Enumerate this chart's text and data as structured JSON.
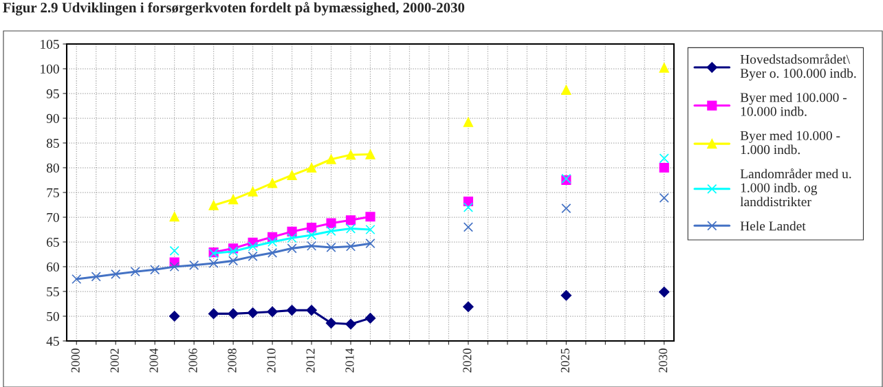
{
  "chart_data": {
    "type": "line",
    "title": "Figur 2.9 Udviklingen i forsørgerkvoten fordelt på bymæssighed, 2000-2030",
    "x": [
      2000,
      2001,
      2002,
      2003,
      2004,
      2005,
      2006,
      2007,
      2008,
      2009,
      2010,
      2011,
      2012,
      2013,
      2014,
      2015,
      2016,
      2020,
      2021,
      2025,
      2026,
      2030
    ],
    "series": [
      {
        "name": "Hovedstadsområdet\\\nByer o. 100.000 indb.",
        "color": "#000080",
        "marker": "diamond",
        "values": [
          null,
          null,
          null,
          null,
          null,
          50,
          null,
          50.5,
          50.5,
          50.7,
          50.9,
          51.2,
          51.2,
          48.6,
          48.4,
          49.6,
          null,
          51.9,
          null,
          54.2,
          null,
          54.9
        ]
      },
      {
        "name": "Byer med 100.000 -\n10.000 indb.",
        "color": "#ff00ff",
        "marker": "square",
        "values": [
          null,
          null,
          null,
          null,
          null,
          60.9,
          null,
          62.9,
          63.7,
          64.9,
          66.0,
          67.1,
          67.9,
          68.8,
          69.4,
          70.1,
          null,
          73.2,
          null,
          77.5,
          null,
          80.0
        ]
      },
      {
        "name": "Byer med 10.000 -\n1.000 indb.",
        "color": "#ffff00",
        "marker": "triangle",
        "values": [
          null,
          null,
          null,
          null,
          null,
          70.1,
          null,
          72.4,
          73.6,
          75.2,
          76.9,
          78.5,
          80.0,
          81.7,
          82.6,
          82.7,
          null,
          89.2,
          null,
          95.7,
          null,
          100.2
        ]
      },
      {
        "name": "Landområder med u.\n1.000 indb. og\nlanddistrikter",
        "color": "#00ffff",
        "marker": "cross",
        "values": [
          null,
          null,
          null,
          null,
          null,
          63.2,
          null,
          62.7,
          63.1,
          64.1,
          65.0,
          65.8,
          66.4,
          67.2,
          67.7,
          67.5,
          null,
          72.0,
          null,
          77.8,
          null,
          81.9
        ]
      },
      {
        "name": "Hele Landet",
        "color": "#4472c4",
        "marker": "cross",
        "values": [
          57.5,
          58.0,
          58.5,
          59.0,
          59.4,
          60.0,
          60.3,
          60.7,
          61.2,
          62.1,
          62.8,
          63.7,
          64.2,
          63.9,
          64.1,
          64.7,
          null,
          68.0,
          null,
          71.8,
          null,
          73.9
        ]
      }
    ],
    "xlim": [
      1999.5,
      2030.5
    ],
    "xticks": [
      2000,
      {
        "value": 2001,
        "label": null
      },
      2002,
      {
        "value": 2003,
        "label": null
      },
      2004,
      {
        "value": 2005,
        "label": null
      },
      2006,
      {
        "value": 2007,
        "label": null
      },
      2008,
      {
        "value": 2009,
        "label": null
      },
      2010,
      {
        "value": 2011,
        "label": null
      },
      2012,
      {
        "value": 2013,
        "label": null
      },
      2014,
      {
        "value": 2015,
        "label": null
      },
      {
        "value": 2016,
        "label": null
      },
      {
        "value": 2017,
        "label": null
      },
      {
        "value": 2018,
        "label": null
      },
      {
        "value": 2019,
        "label": null
      },
      2020,
      {
        "value": 2021,
        "label": null
      },
      {
        "value": 2022,
        "label": null
      },
      {
        "value": 2023,
        "label": null
      },
      {
        "value": 2024,
        "label": null
      },
      2025,
      {
        "value": 2026,
        "label": null
      },
      {
        "value": 2027,
        "label": null
      },
      {
        "value": 2028,
        "label": null
      },
      {
        "value": 2029,
        "label": null
      },
      2030
    ],
    "ylim": [
      45,
      105
    ],
    "yticks": [
      45,
      50,
      55,
      60,
      65,
      70,
      75,
      80,
      85,
      90,
      95,
      100,
      105
    ],
    "grid": true,
    "legend": "right",
    "line_style": "solid"
  }
}
